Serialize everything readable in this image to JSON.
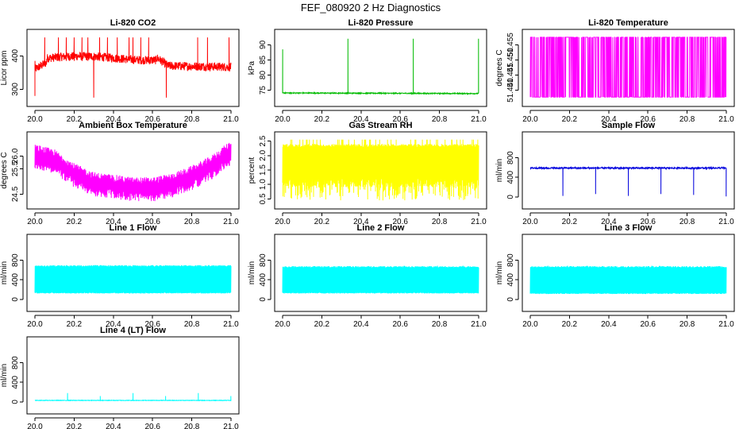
{
  "figure": {
    "title": "FEF_080920  2 Hz Diagnostics"
  },
  "chart_data": [
    {
      "id": "co2",
      "type": "line",
      "title": "Li-820 CO2",
      "ylabel": "Licor ppm",
      "color": "#ff0000",
      "xlim": [
        20.0,
        21.0
      ],
      "ylim": [
        270,
        460
      ],
      "xticks": [
        "20.0",
        "20.2",
        "20.4",
        "20.6",
        "20.8",
        "21.0"
      ],
      "yticks": [
        {
          "value": 300,
          "label": "300"
        },
        {
          "value": 400,
          "label": "400"
        }
      ],
      "series": [
        {
          "name": "CO2",
          "pattern": "co2",
          "spikes": [
            {
              "x": 20.0,
              "y": 280
            },
            {
              "x": 20.05,
              "y": 455
            },
            {
              "x": 20.12,
              "y": 455
            },
            {
              "x": 20.16,
              "y": 455
            },
            {
              "x": 20.2,
              "y": 455
            },
            {
              "x": 20.24,
              "y": 455
            },
            {
              "x": 20.27,
              "y": 455
            },
            {
              "x": 20.3,
              "y": 275
            },
            {
              "x": 20.33,
              "y": 455
            },
            {
              "x": 20.37,
              "y": 455
            },
            {
              "x": 20.42,
              "y": 455
            },
            {
              "x": 20.48,
              "y": 455
            },
            {
              "x": 20.5,
              "y": 455
            },
            {
              "x": 20.54,
              "y": 455
            },
            {
              "x": 20.58,
              "y": 455
            },
            {
              "x": 20.67,
              "y": 275
            },
            {
              "x": 20.83,
              "y": 455
            },
            {
              "x": 20.88,
              "y": 455
            },
            {
              "x": 20.99,
              "y": 455
            }
          ]
        }
      ]
    },
    {
      "id": "pressure",
      "type": "line",
      "title": "Li-820 Pressure",
      "ylabel": "kPa",
      "color": "#00bb00",
      "xlim": [
        20.0,
        21.0
      ],
      "ylim": [
        72,
        93
      ],
      "xticks": [
        "20.0",
        "20.2",
        "20.4",
        "20.6",
        "20.8",
        "21.0"
      ],
      "yticks": [
        {
          "value": 75,
          "label": "75"
        },
        {
          "value": 80,
          "label": "80"
        },
        {
          "value": 85,
          "label": "85"
        },
        {
          "value": 90,
          "label": "90"
        }
      ],
      "series": [
        {
          "name": "Pressure",
          "pattern": "pressure",
          "spikes": [
            {
              "x": 20.0,
              "y": 88.5
            },
            {
              "x": 20.333,
              "y": 92
            },
            {
              "x": 20.666,
              "y": 92
            },
            {
              "x": 20.999,
              "y": 92
            }
          ]
        }
      ]
    },
    {
      "id": "licor_temp",
      "type": "line",
      "title": "Li-820 Temperature",
      "ylabel": "degrees C",
      "color": "#ff00ff",
      "xlim": [
        20.0,
        21.0
      ],
      "ylim": [
        51.437,
        51.458
      ],
      "xticks": [
        "20.0",
        "20.2",
        "20.4",
        "20.6",
        "20.8",
        "21.0"
      ],
      "yticks": [
        {
          "value": 51.44,
          "label": "51.440"
        },
        {
          "value": 51.445,
          "label": "51.445"
        },
        {
          "value": 51.45,
          "label": "51.450"
        },
        {
          "value": 51.455,
          "label": "51.455"
        }
      ],
      "series": [
        {
          "name": "Temperature",
          "pattern": "bistable",
          "low": 51.4377,
          "high": 51.4575
        }
      ]
    },
    {
      "id": "box_temp",
      "type": "line",
      "title": "Ambient Box Temperature",
      "ylabel": "degrees C",
      "color": "#ff00ff",
      "xlim": [
        20.0,
        21.0
      ],
      "ylim": [
        24.2,
        26.7
      ],
      "xticks": [
        "20.0",
        "20.2",
        "20.4",
        "20.6",
        "20.8",
        "21.0"
      ],
      "yticks": [
        {
          "value": 24.5,
          "label": "24.5"
        },
        {
          "value": 25.5,
          "label": "25.5"
        },
        {
          "value": 26.0,
          "label": "26.0"
        }
      ],
      "series": [
        {
          "name": "Box temperature",
          "pattern": "box_temp",
          "curve": [
            {
              "x": 20.0,
              "y": 26.05
            },
            {
              "x": 20.1,
              "y": 25.85
            },
            {
              "x": 20.2,
              "y": 25.3
            },
            {
              "x": 20.3,
              "y": 24.95
            },
            {
              "x": 20.4,
              "y": 24.85
            },
            {
              "x": 20.5,
              "y": 24.75
            },
            {
              "x": 20.6,
              "y": 24.75
            },
            {
              "x": 20.7,
              "y": 24.9
            },
            {
              "x": 20.8,
              "y": 25.2
            },
            {
              "x": 20.9,
              "y": 25.6
            },
            {
              "x": 21.0,
              "y": 26.2
            }
          ]
        }
      ]
    },
    {
      "id": "rh",
      "type": "line",
      "title": "Gas Stream RH",
      "ylabel": "percent",
      "color": "#ffff00",
      "xlim": [
        20.0,
        21.0
      ],
      "ylim": [
        0.4,
        2.6
      ],
      "xticks": [
        "20.0",
        "20.2",
        "20.4",
        "20.6",
        "20.8",
        "21.0"
      ],
      "yticks": [
        {
          "value": 0.5,
          "label": "0.5"
        },
        {
          "value": 1.0,
          "label": "1.0"
        },
        {
          "value": 1.5,
          "label": "1.5"
        },
        {
          "value": 2.0,
          "label": "2.0"
        },
        {
          "value": 2.5,
          "label": "2.5"
        }
      ],
      "series": [
        {
          "name": "RH",
          "pattern": "rh",
          "band_low": 0.9,
          "band_high": 2.35,
          "min": 0.45,
          "max": 2.55
        }
      ]
    },
    {
      "id": "sample_flow",
      "type": "line",
      "title": "Sample Flow",
      "ylabel": "ml/min",
      "color": "#0000dd",
      "xlim": [
        20.0,
        21.0
      ],
      "ylim": [
        -100,
        1200
      ],
      "xticks": [
        "20.0",
        "20.2",
        "20.4",
        "20.6",
        "20.8",
        "21.0"
      ],
      "yticks": [
        {
          "value": 0,
          "label": "0"
        },
        {
          "value": 400,
          "label": "400"
        },
        {
          "value": 800,
          "label": "800"
        }
      ],
      "series": [
        {
          "name": "Sample flow",
          "pattern": "flow_dips",
          "level": 590,
          "dips": [
            {
              "x": 20.166,
              "y": 20
            },
            {
              "x": 20.333,
              "y": 60
            },
            {
              "x": 20.5,
              "y": 20
            },
            {
              "x": 20.666,
              "y": 60
            },
            {
              "x": 20.833,
              "y": 40
            },
            {
              "x": 20.999,
              "y": 10
            }
          ]
        }
      ]
    },
    {
      "id": "line1",
      "type": "line",
      "title": "Line 1 Flow",
      "ylabel": "ml/min",
      "color": "#00ffff",
      "xlim": [
        20.0,
        21.0
      ],
      "ylim": [
        -100,
        1200
      ],
      "xticks": [
        "20.0",
        "20.2",
        "20.4",
        "20.6",
        "20.8",
        "21.0"
      ],
      "yticks": [
        {
          "value": 0,
          "label": "0"
        },
        {
          "value": 400,
          "label": "400"
        },
        {
          "value": 800,
          "label": "800"
        }
      ],
      "series": [
        {
          "name": "Line 1",
          "pattern": "band",
          "low": 120,
          "high": 700,
          "gaps": [
            20.16,
            20.333,
            20.5,
            20.666,
            20.833
          ]
        }
      ]
    },
    {
      "id": "line2",
      "type": "line",
      "title": "Line 2 Flow",
      "ylabel": "ml/min",
      "color": "#00ffff",
      "xlim": [
        20.0,
        21.0
      ],
      "ylim": [
        -100,
        1200
      ],
      "xticks": [
        "20.0",
        "20.2",
        "20.4",
        "20.6",
        "20.8",
        "21.0"
      ],
      "yticks": [
        {
          "value": 0,
          "label": "0"
        },
        {
          "value": 400,
          "label": "400"
        },
        {
          "value": 800,
          "label": "800"
        }
      ],
      "series": [
        {
          "name": "Line 2",
          "pattern": "band",
          "low": 120,
          "high": 680,
          "gaps": [
            20.1,
            20.16,
            20.2,
            20.33,
            20.36,
            20.44,
            20.5,
            20.58,
            20.62,
            20.66,
            20.75,
            20.79,
            20.83,
            20.87,
            20.92
          ]
        }
      ]
    },
    {
      "id": "line3",
      "type": "line",
      "title": "Line 3 Flow",
      "ylabel": "ml/min",
      "color": "#00ffff",
      "xlim": [
        20.0,
        21.0
      ],
      "ylim": [
        -100,
        1200
      ],
      "xticks": [
        "20.0",
        "20.2",
        "20.4",
        "20.6",
        "20.8",
        "21.0"
      ],
      "yticks": [
        {
          "value": 0,
          "label": "0"
        },
        {
          "value": 400,
          "label": "400"
        },
        {
          "value": 800,
          "label": "800"
        }
      ],
      "series": [
        {
          "name": "Line 3",
          "pattern": "band",
          "low": 110,
          "high": 680,
          "gaps": [
            20.09,
            20.13,
            20.16,
            20.19,
            20.25,
            20.29,
            20.33,
            20.37,
            20.5,
            20.54,
            20.58,
            20.62,
            20.66,
            20.7,
            20.74,
            20.83,
            20.87
          ]
        }
      ]
    },
    {
      "id": "line4",
      "type": "line",
      "title": "Line 4 (LT) Flow",
      "ylabel": "ml/min",
      "color": "#00ffff",
      "xlim": [
        20.0,
        21.0
      ],
      "ylim": [
        -100,
        1200
      ],
      "xticks": [
        "20.0",
        "20.2",
        "20.4",
        "20.6",
        "20.8",
        "21.0"
      ],
      "yticks": [
        {
          "value": 0,
          "label": "0"
        },
        {
          "value": 400,
          "label": "400"
        },
        {
          "value": 800,
          "label": "800"
        }
      ],
      "series": [
        {
          "name": "Line 4",
          "pattern": "flow_spikes",
          "level": 30,
          "spikes": [
            {
              "x": 20.166,
              "y": 180
            },
            {
              "x": 20.333,
              "y": 120
            },
            {
              "x": 20.5,
              "y": 180
            },
            {
              "x": 20.666,
              "y": 120
            },
            {
              "x": 20.833,
              "y": 180
            },
            {
              "x": 20.999,
              "y": 120
            }
          ]
        }
      ]
    }
  ]
}
